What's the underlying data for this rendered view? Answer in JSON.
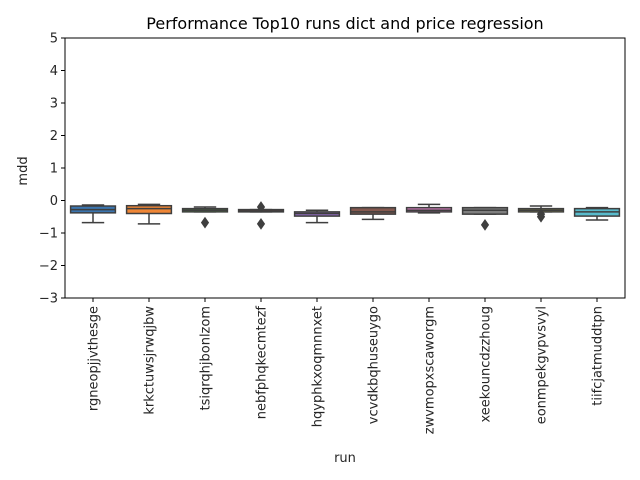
{
  "chart_data": {
    "type": "box",
    "title": "Performance Top10 runs dict and price regression",
    "xlabel": "run",
    "ylabel": "mdd",
    "ylim": [
      -3,
      5
    ],
    "yticks": [
      {
        "value": -3,
        "label": "−3"
      },
      {
        "value": -2,
        "label": "−2"
      },
      {
        "value": -1,
        "label": "−1"
      },
      {
        "value": 0,
        "label": "0"
      },
      {
        "value": 1,
        "label": "1"
      },
      {
        "value": 2,
        "label": "2"
      },
      {
        "value": 3,
        "label": "3"
      },
      {
        "value": 4,
        "label": "4"
      },
      {
        "value": 5,
        "label": "5"
      }
    ],
    "grid": false,
    "categories": [
      "rgneopjjvthesge",
      "krkctuwsjrwqjbw",
      "tsiqrqhjbonlzom",
      "nebfphqkecmtezf",
      "hqyphkxoqmnnxet",
      "vcvdkbqhuseuygo",
      "zwvmopxscaworgm",
      "xeekouncdzzhoug",
      "eonmpekgvpvsvyl",
      "tiifcjatmuddtpn"
    ],
    "boxes": [
      {
        "min": -0.68,
        "q1": -0.38,
        "median": -0.28,
        "q3": -0.17,
        "max": -0.14,
        "outliers": [],
        "color": "#3b75af"
      },
      {
        "min": -0.72,
        "q1": -0.4,
        "median": -0.25,
        "q3": -0.16,
        "max": -0.12,
        "outliers": [],
        "color": "#ef8636"
      },
      {
        "min": -0.35,
        "q1": -0.35,
        "median": -0.3,
        "q3": -0.25,
        "max": -0.2,
        "outliers": [
          -0.68
        ],
        "color": "#519e3e"
      },
      {
        "min": -0.35,
        "q1": -0.35,
        "median": -0.32,
        "q3": -0.28,
        "max": -0.28,
        "outliers": [
          -0.2,
          -0.72
        ],
        "color": "#c53a32"
      },
      {
        "min": -0.68,
        "q1": -0.48,
        "median": -0.4,
        "q3": -0.35,
        "max": -0.3,
        "outliers": [],
        "color": "#8d69b8"
      },
      {
        "min": -0.58,
        "q1": -0.42,
        "median": -0.35,
        "q3": -0.22,
        "max": -0.22,
        "outliers": [],
        "color": "#84584e"
      },
      {
        "min": -0.38,
        "q1": -0.35,
        "median": -0.3,
        "q3": -0.22,
        "max": -0.12,
        "outliers": [],
        "color": "#d57dbe"
      },
      {
        "min": -0.42,
        "q1": -0.42,
        "median": -0.3,
        "q3": -0.22,
        "max": -0.22,
        "outliers": [
          -0.75
        ],
        "color": "#7f7f7f"
      },
      {
        "min": -0.35,
        "q1": -0.35,
        "median": -0.3,
        "q3": -0.25,
        "max": -0.17,
        "outliers": [
          -0.42,
          -0.5
        ],
        "color": "#bcbc45"
      },
      {
        "min": -0.6,
        "q1": -0.48,
        "median": -0.35,
        "q3": -0.25,
        "max": -0.22,
        "outliers": [],
        "color": "#58bbcc"
      }
    ]
  }
}
